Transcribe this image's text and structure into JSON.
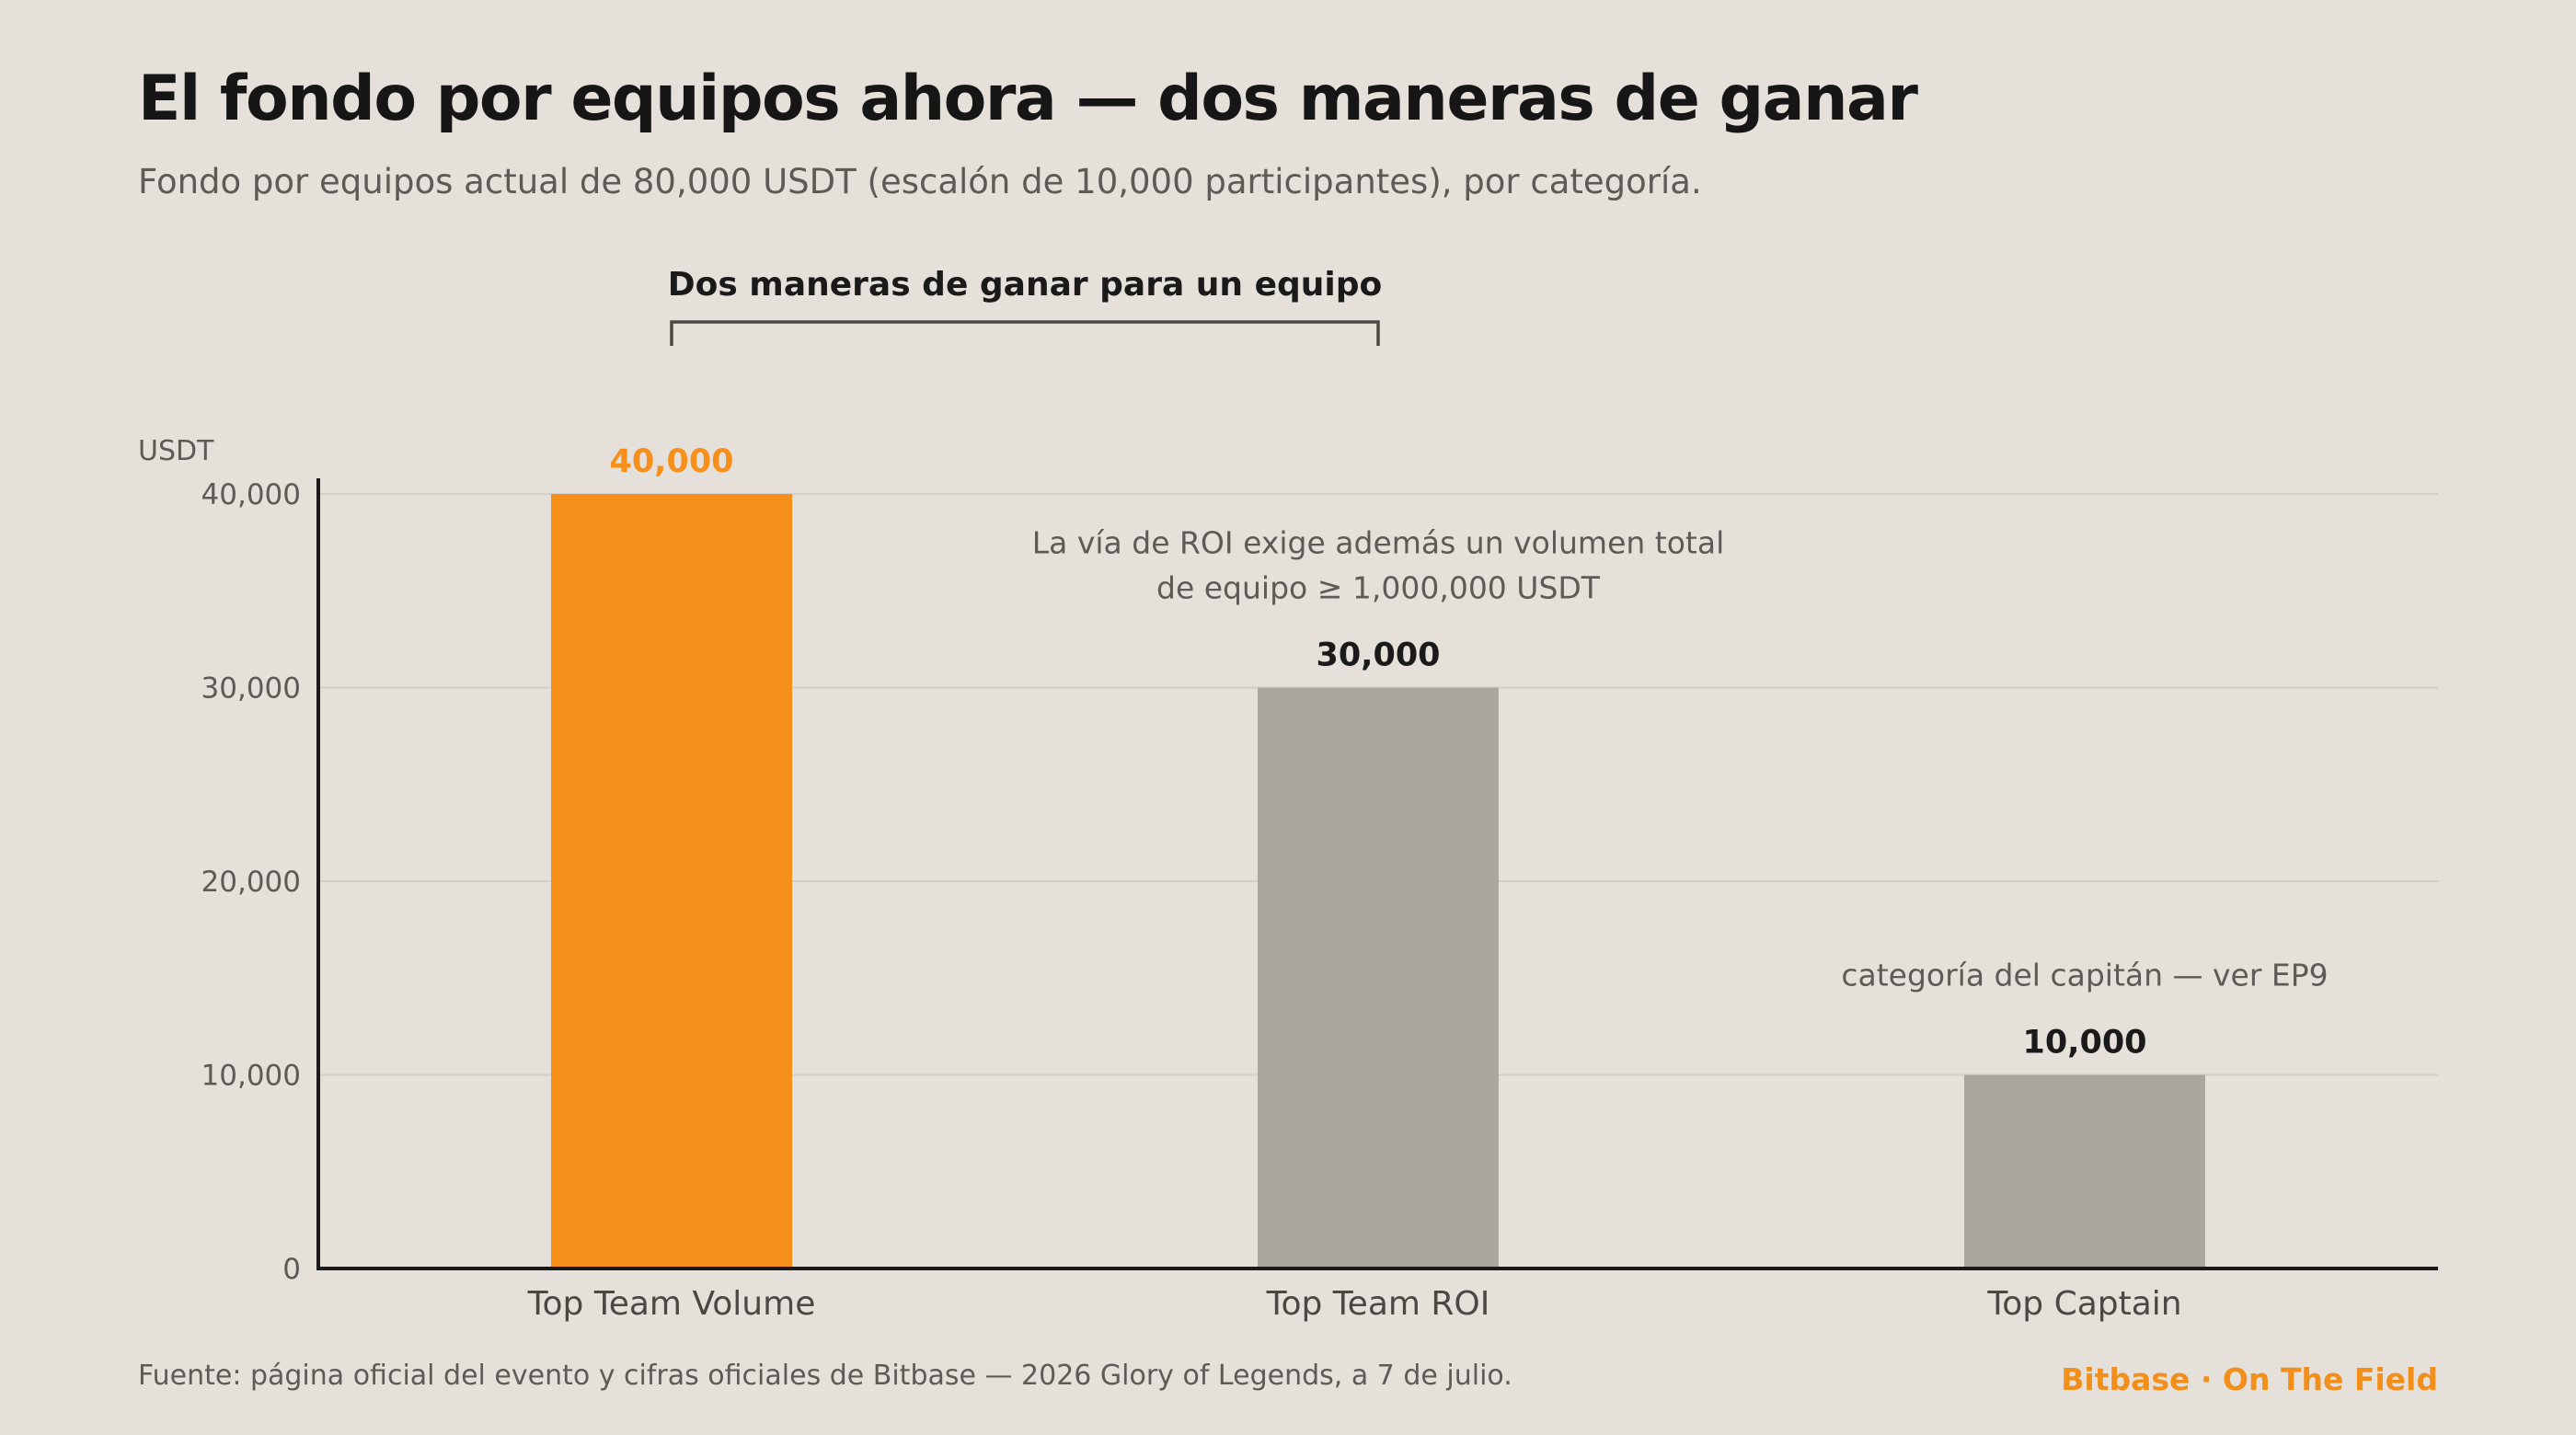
{
  "header": {
    "title": "El fondo por equipos ahora — dos maneras de ganar",
    "subtitle": "Fondo por equipos actual de 80,000 USDT (escalón de 10,000 participantes), por categoría."
  },
  "footer": {
    "source": "Fuente: página oficial del evento y cifras oficiales de Bitbase — 2026 Glory of Legends, a 7 de julio.",
    "brand": "Bitbase · On The Field"
  },
  "colors": {
    "accent": "#f6901a",
    "muted_bar": "#aaa6a0",
    "axis": "#1a1a1a",
    "grid": "#d3cec8",
    "tick_text": "#5d5a57"
  },
  "chart_data": {
    "type": "bar",
    "categories": [
      "Top Team Volume",
      "Top Team ROI",
      "Top Captain"
    ],
    "values": [
      40000,
      30000,
      10000
    ],
    "value_labels": [
      "40,000",
      "30,000",
      "10,000"
    ],
    "highlight_index": 0,
    "ylabel": "USDT",
    "ylim": [
      0,
      40000
    ],
    "yticks": [
      0,
      10000,
      20000,
      30000,
      40000
    ],
    "ytick_labels": [
      "0",
      "10,000",
      "20,000",
      "30,000",
      "40,000"
    ],
    "grid": true,
    "bracket": {
      "label": "Dos maneras de ganar para un equipo",
      "spans": [
        0,
        1
      ]
    },
    "annotations": [
      {
        "category_index": 1,
        "lines": [
          "La vía de ROI exige además un volumen total",
          "de equipo ≥ 1,000,000 USDT"
        ]
      },
      {
        "category_index": 2,
        "lines": [
          "categoría del capitán — ver EP9"
        ]
      }
    ]
  }
}
